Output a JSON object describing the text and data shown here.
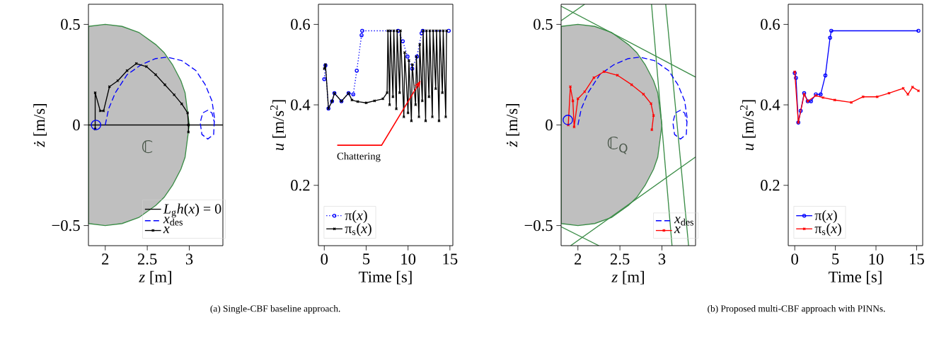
{
  "chart_data": [
    {
      "type": "line",
      "xlabel": "*z* [m]",
      "ylabel": "*ż* [m/s]",
      "xlim": [
        1.8,
        3.4
      ],
      "ylim": [
        -0.6,
        0.6
      ],
      "xticks": [
        2,
        2.5,
        3
      ],
      "yticks": [
        {
          "value": -0.5,
          "label": "−0.5"
        },
        0,
        0.5
      ],
      "legend": "bottom right",
      "annotations": [
        "ℂ",
        "(a) Single-CBF baseline approach."
      ],
      "series": [
        {
          "type": "area",
          "color": "#bfbfbf",
          "x": [
            1.8,
            2.0,
            2.2,
            2.4,
            2.6,
            2.7,
            2.8,
            2.9,
            2.95,
            3.0,
            2.95,
            2.9,
            2.8,
            2.7,
            2.6,
            2.4,
            2.2,
            2.0,
            1.8
          ],
          "values": [
            0.49,
            0.5,
            0.49,
            0.46,
            0.4,
            0.36,
            0.3,
            0.22,
            0.16,
            0,
            -0.16,
            -0.22,
            -0.3,
            -0.36,
            -0.4,
            -0.46,
            -0.49,
            -0.5,
            -0.49
          ]
        },
        {
          "name": "*L*$_{g}$*h*(*x*) = 0",
          "color": "#000000",
          "line_style": "solid",
          "x": [
            1.8,
            3.4
          ],
          "values": [
            0,
            0
          ]
        },
        {
          "type": "line",
          "name": "*x*$_{des}$",
          "color": "#0000ff",
          "line_style": "dashed",
          "x": [
            2.0,
            2.04,
            2.12,
            2.26,
            2.43,
            2.6,
            2.74,
            2.91,
            3.08,
            3.19,
            3.27,
            3.3,
            3.29,
            3.22,
            3.15,
            3.13,
            3.16,
            3.22,
            3.27,
            3.3
          ],
          "values": [
            0,
            0.08,
            0.16,
            0.25,
            0.3,
            0.33,
            0.337,
            0.32,
            0.27,
            0.2,
            0.12,
            0.035,
            -0.047,
            -0.07,
            -0.047,
            0.012,
            0.06,
            0.073,
            0.06,
            0.01
          ]
        },
        {
          "name": "*x*",
          "color": "#000000",
          "line_style": "solid",
          "marker": "cross",
          "x": [
            1.88,
            1.88,
            1.94,
            1.98,
            2.05,
            2.15,
            2.26,
            2.37,
            2.49,
            2.6,
            2.71,
            2.82,
            2.91,
            2.98,
            2.99,
            2.99
          ],
          "values": [
            -0.02,
            0.16,
            0.07,
            0.07,
            0.19,
            0.22,
            0.27,
            0.305,
            0.29,
            0.25,
            0.2,
            0.15,
            0.105,
            0.06,
            0.0,
            -0.035
          ]
        },
        {
          "type": "scatter",
          "color": "#0000ff",
          "marker": "circle",
          "x": [
            1.89
          ],
          "values": [
            0
          ]
        }
      ]
    },
    {
      "type": "line",
      "xlabel": "Time [s]",
      "ylabel": "*u* [m/s$^{2}$]",
      "xlim": [
        -0.7,
        15.35
      ],
      "ylim": [
        0.05,
        0.65
      ],
      "xticks": [
        0,
        5,
        10,
        15
      ],
      "yticks": [
        0.2,
        0.4,
        0.6
      ],
      "legend": "bottom left",
      "annotations": [
        {
          "text": "Chattering",
          "x": 11.5,
          "y": 0.46
        }
      ],
      "series": [
        {
          "name": "π(*x*)",
          "color": "#0000ff",
          "line_style": "dotted",
          "marker": "circle",
          "x": [
            0,
            0.14,
            0.5,
            0.93,
            1.21,
            2.05,
            2.9,
            3.46,
            3.88,
            4.45,
            4.53,
            8.81,
            9.37,
            9.94,
            10.5,
            11.06,
            11.62,
            11.76,
            14.86
          ],
          "values": [
            0.464,
            0.498,
            0.391,
            0.409,
            0.429,
            0.409,
            0.429,
            0.426,
            0.485,
            0.573,
            0.584,
            0.584,
            0.558,
            0.52,
            0.49,
            0.52,
            0.578,
            0.584,
            0.584
          ]
        },
        {
          "name": "π$_{s}$(*x*)",
          "color": "#000000",
          "line_style": "solid",
          "marker": "cross",
          "x": [
            0,
            0.14,
            0.5,
            0.93,
            1.21,
            2.05,
            2.9,
            3.3,
            4,
            5,
            6,
            7,
            7.5,
            7.6,
            7.8,
            7.9,
            8.2,
            8.3,
            8.6,
            8.7,
            9.0,
            9.1,
            9.5,
            9.6,
            10.0,
            10.1,
            10.4,
            10.5,
            10.9,
            11.0,
            11.3,
            11.4,
            11.7,
            11.8,
            12.1,
            12.2,
            12.5,
            12.6,
            12.9,
            13.0,
            13.3,
            13.4,
            13.7,
            13.8,
            14.1,
            14.2,
            14.5,
            14.6
          ],
          "values": [
            0.49,
            0.5,
            0.391,
            0.409,
            0.429,
            0.409,
            0.429,
            0.412,
            0.408,
            0.405,
            0.41,
            0.415,
            0.43,
            0.584,
            0.4,
            0.584,
            0.42,
            0.584,
            0.39,
            0.584,
            0.43,
            0.584,
            0.37,
            0.53,
            0.38,
            0.51,
            0.36,
            0.5,
            0.4,
            0.52,
            0.37,
            0.55,
            0.41,
            0.584,
            0.36,
            0.584,
            0.42,
            0.584,
            0.37,
            0.584,
            0.44,
            0.584,
            0.36,
            0.584,
            0.43,
            0.584,
            0.37,
            0.584
          ]
        }
      ]
    },
    {
      "type": "line",
      "xlabel": "*z* [m]",
      "ylabel": "*ż* [m/s]",
      "xlim": [
        1.8,
        3.4
      ],
      "ylim": [
        -0.6,
        0.6
      ],
      "xticks": [
        2,
        2.5,
        3
      ],
      "yticks": [
        {
          "value": -0.5,
          "label": "−0.5"
        },
        0,
        0.5
      ],
      "legend": "bottom right",
      "annotations": [
        "ℂ$_{Q}$",
        "(b) Proposed multi-CBF approach with PINNs."
      ],
      "series": [
        {
          "type": "area",
          "color": "#bfbfbf",
          "x": [
            1.8,
            2.0,
            2.2,
            2.4,
            2.6,
            2.7,
            2.8,
            2.9,
            2.95,
            3.0,
            2.95,
            2.9,
            2.8,
            2.7,
            2.6,
            2.4,
            2.2,
            2.0,
            1.8
          ],
          "values": [
            0.49,
            0.5,
            0.49,
            0.46,
            0.4,
            0.36,
            0.3,
            0.22,
            0.16,
            0,
            -0.16,
            -0.22,
            -0.3,
            -0.36,
            -0.4,
            -0.46,
            -0.49,
            -0.5,
            -0.49
          ]
        },
        {
          "type": "line",
          "color": "#3a8c46",
          "line_style": "solid",
          "x": [
            1.8,
            3.4
          ],
          "values": [
            0.59,
            0.238
          ]
        },
        {
          "type": "line",
          "color": "#3a8c46",
          "line_style": "solid",
          "x": [
            1.8,
            2.08
          ],
          "values": [
            0.518,
            0.6
          ]
        },
        {
          "type": "line",
          "color": "#3a8c46",
          "line_style": "solid",
          "x": [
            2.876,
            3.12
          ],
          "values": [
            0.6,
            -0.6
          ]
        },
        {
          "type": "line",
          "color": "#3a8c46",
          "line_style": "solid",
          "x": [
            3.045,
            3.317
          ],
          "values": [
            0.6,
            -0.6
          ]
        },
        {
          "type": "line",
          "color": "#3a8c46",
          "line_style": "solid",
          "x": [
            1.913,
            3.4
          ],
          "values": [
            -0.6,
            -0.159
          ]
        },
        {
          "type": "line",
          "color": "#3a8c46",
          "line_style": "solid",
          "x": [
            1.8,
            2.25
          ],
          "values": [
            -0.506,
            -0.6
          ]
        },
        {
          "type": "line",
          "name": "*x*$_{des}$",
          "color": "#0000ff",
          "line_style": "dashed",
          "x": [
            2.0,
            2.04,
            2.12,
            2.26,
            2.43,
            2.6,
            2.74,
            2.91,
            3.08,
            3.19,
            3.27,
            3.3,
            3.29,
            3.22,
            3.15,
            3.13,
            3.16,
            3.22,
            3.27,
            3.3
          ],
          "values": [
            0,
            0.08,
            0.16,
            0.25,
            0.3,
            0.33,
            0.337,
            0.32,
            0.27,
            0.2,
            0.12,
            0.035,
            -0.047,
            -0.07,
            -0.047,
            0.012,
            0.06,
            0.073,
            0.06,
            0.01
          ]
        },
        {
          "name": "*x*",
          "color": "#ff0000",
          "line_style": "solid",
          "marker": "cross",
          "x": [
            1.885,
            1.91,
            1.94,
            1.955,
            2.0,
            2.08,
            2.19,
            2.31,
            2.47,
            2.64,
            2.78,
            2.87,
            2.9,
            2.88
          ],
          "values": [
            0,
            0.19,
            0.12,
            -0.01,
            0.13,
            0.165,
            0.235,
            0.265,
            0.247,
            0.2,
            0.153,
            0.106,
            0.047,
            -0.024
          ]
        },
        {
          "type": "scatter",
          "color": "#0000ff",
          "marker": "circle",
          "x": [
            1.88
          ],
          "values": [
            0.025
          ]
        }
      ]
    },
    {
      "type": "line",
      "xlabel": "Time [s]",
      "ylabel": "*u* [m/s$^{2}$]",
      "xlim": [
        -0.8,
        15.75
      ],
      "ylim": [
        0.05,
        0.65
      ],
      "xticks": [
        0,
        5,
        10,
        15
      ],
      "yticks": [
        0.2,
        0.4,
        0.6
      ],
      "legend": "bottom left",
      "series": [
        {
          "name": "π(*x*)",
          "color": "#0000ff",
          "line_style": "solid",
          "marker": "circle",
          "x": [
            0,
            0.15,
            0.44,
            0.73,
            1.16,
            1.6,
            2.0,
            2.6,
            3.19,
            3.77,
            4.35,
            4.5,
            15.23
          ],
          "values": [
            0.479,
            0.467,
            0.356,
            0.385,
            0.429,
            0.409,
            0.409,
            0.426,
            0.426,
            0.473,
            0.567,
            0.584,
            0.584
          ]
        },
        {
          "name": "π$_{s}$(*x*)",
          "color": "#ff0000",
          "line_style": "solid",
          "marker": "cross",
          "x": [
            0,
            0.44,
            1.16,
            1.6,
            2.6,
            3.48,
            4.93,
            6.96,
            8.41,
            10.15,
            11.6,
            13.35,
            13.93,
            14.5,
            15.23
          ],
          "values": [
            0.482,
            0.356,
            0.426,
            0.409,
            0.423,
            0.418,
            0.412,
            0.406,
            0.42,
            0.42,
            0.429,
            0.441,
            0.426,
            0.444,
            0.435
          ]
        }
      ]
    }
  ]
}
